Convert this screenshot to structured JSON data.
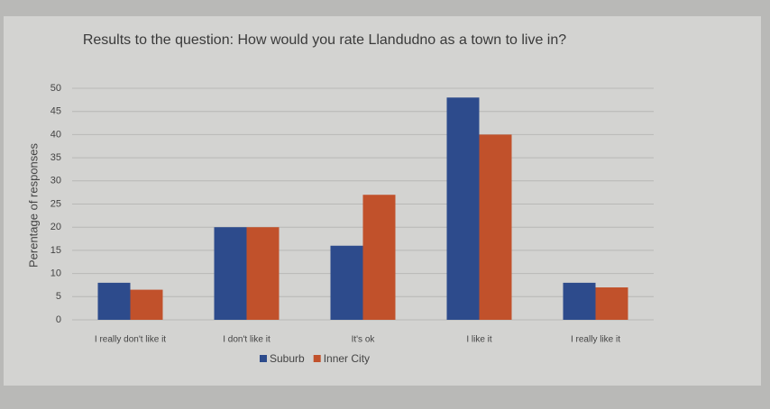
{
  "chart_data": {
    "type": "bar",
    "title": "Results to the question: How would you rate Llandudno as a town to live in?",
    "y_label": "Perentage of responses",
    "categories": [
      "I really don't like it",
      "I don't like it",
      "It's ok",
      "I like it",
      "I really like it"
    ],
    "series": [
      {
        "name": "Suburb",
        "color": "#2d4b8c",
        "values": [
          8,
          20,
          16,
          48,
          8
        ]
      },
      {
        "name": "Inner City",
        "color": "#c1512b",
        "values": [
          6.5,
          20,
          27,
          40,
          7
        ]
      }
    ],
    "ylim": [
      0,
      50
    ],
    "yticks": [
      0,
      5,
      10,
      15,
      20,
      25,
      30,
      35,
      40,
      45,
      50
    ],
    "grid": true,
    "legend": "bottom"
  }
}
